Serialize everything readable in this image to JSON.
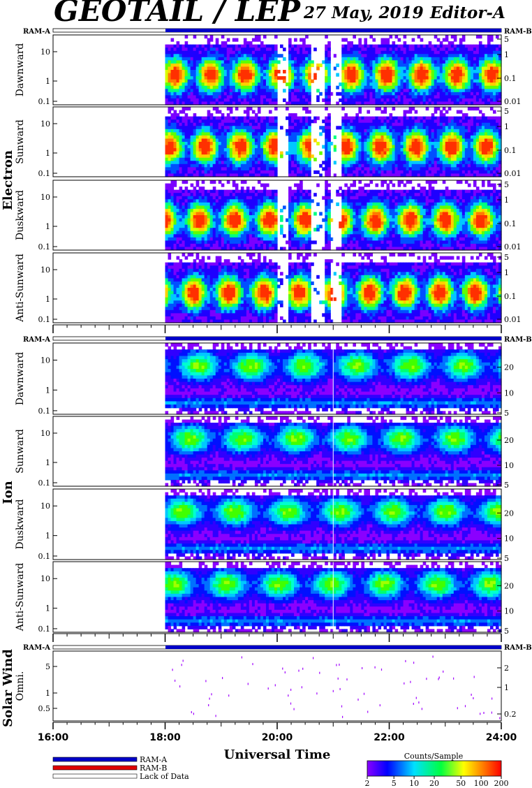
{
  "title": {
    "instrument": "GEOTAIL / LEP",
    "date": "27 May, 2019",
    "editor": "Editor-A"
  },
  "ram_labels": {
    "a": "RAM-A",
    "b": "RAM-B"
  },
  "groups": {
    "electron": "Electron",
    "ion": "Ion",
    "solar_wind": "Solar Wind"
  },
  "legend": {
    "ram_a": "RAM-A",
    "ram_b": "RAM-B",
    "lack": "Lack of Data"
  },
  "colorbar": {
    "title": "Counts/Sample",
    "ticks": [
      "2",
      "5",
      "10",
      "20",
      "50",
      "100",
      "200"
    ]
  },
  "colors": {
    "ram_a": "#0000c8",
    "ram_b": "#e00000"
  },
  "chart_data": {
    "type": "heatmap",
    "xlabel": "Universal Time",
    "x_ticks": [
      "16:00",
      "18:00",
      "20:00",
      "22:00",
      "24:00"
    ],
    "data_start": "18:00",
    "data_end": "24:00",
    "panels": [
      {
        "group": "electron",
        "name": "Dawnward",
        "yticks": [
          "10",
          "1",
          "0.1"
        ],
        "rticks": [
          "5",
          "1",
          "0.1",
          "0.01"
        ]
      },
      {
        "group": "electron",
        "name": "Sunward",
        "yticks": [
          "10",
          "1",
          "0.1"
        ],
        "rticks": [
          "5",
          "1",
          "0.1",
          "0.01"
        ]
      },
      {
        "group": "electron",
        "name": "Duskward",
        "yticks": [
          "10",
          "1",
          "0.1"
        ],
        "rticks": [
          "5",
          "1",
          "0.1",
          "0.01"
        ]
      },
      {
        "group": "electron",
        "name": "Anti-Sunward",
        "yticks": [
          "10",
          "1",
          "0.1"
        ],
        "rticks": [
          "5",
          "1",
          "0.1",
          "0.01"
        ]
      },
      {
        "group": "ion",
        "name": "Dawnward",
        "yticks": [
          "10",
          "1",
          "0.1"
        ],
        "rticks": [
          "20",
          "10",
          "5"
        ]
      },
      {
        "group": "ion",
        "name": "Sunward",
        "yticks": [
          "10",
          "1",
          "0.1"
        ],
        "rticks": [
          "20",
          "10",
          "5"
        ]
      },
      {
        "group": "ion",
        "name": "Duskward",
        "yticks": [
          "10",
          "1",
          "0.1"
        ],
        "rticks": [
          "20",
          "10",
          "5"
        ]
      },
      {
        "group": "ion",
        "name": "Anti-Sunward",
        "yticks": [
          "10",
          "1",
          "0.1"
        ],
        "rticks": [
          "20",
          "10",
          "5"
        ]
      },
      {
        "group": "solar_wind",
        "name": "Omni.",
        "yticks": [
          "5",
          "1",
          "0.5"
        ],
        "rticks": [
          "2",
          "1",
          "0.2"
        ]
      }
    ]
  }
}
